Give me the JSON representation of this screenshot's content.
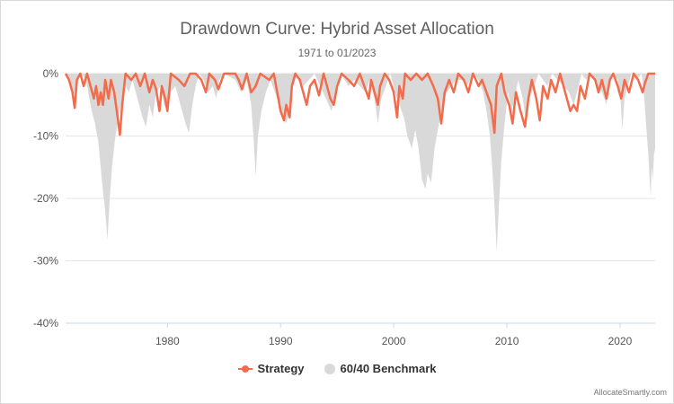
{
  "chart_data": {
    "type": "area",
    "title": "Drawdown Curve: Hybrid Asset Allocation",
    "subtitle": "1971 to 01/2023",
    "xlabel": "",
    "ylabel": "",
    "xlim": [
      1971,
      2023.1
    ],
    "ylim": [
      -40,
      0
    ],
    "x_ticks": [
      "1980",
      "1990",
      "2000",
      "2010",
      "2020"
    ],
    "x_tick_values": [
      1980,
      1990,
      2000,
      2010,
      2020
    ],
    "y_ticks": [
      "0%",
      "-10%",
      "-20%",
      "-30%",
      "-40%"
    ],
    "y_tick_values": [
      0,
      -10,
      -20,
      -30,
      -40
    ],
    "grid": "horizontal",
    "legend_position": "bottom-center",
    "series": [
      {
        "name": "Strategy",
        "style": "line",
        "color": "#f26b4a",
        "points": [
          [
            1971.0,
            0
          ],
          [
            1971.3,
            -1
          ],
          [
            1971.6,
            -3
          ],
          [
            1971.8,
            -5.5
          ],
          [
            1972.0,
            -1
          ],
          [
            1972.3,
            0
          ],
          [
            1972.6,
            -2
          ],
          [
            1972.9,
            0
          ],
          [
            1973.2,
            -2
          ],
          [
            1973.5,
            -4
          ],
          [
            1973.7,
            -2
          ],
          [
            1973.9,
            -5
          ],
          [
            1974.1,
            -3
          ],
          [
            1974.3,
            -5
          ],
          [
            1974.5,
            -1
          ],
          [
            1974.8,
            -4
          ],
          [
            1975.0,
            -1
          ],
          [
            1975.3,
            -3
          ],
          [
            1975.6,
            -7
          ],
          [
            1975.8,
            -9.8
          ],
          [
            1976.0,
            -5
          ],
          [
            1976.3,
            0
          ],
          [
            1976.8,
            -1
          ],
          [
            1977.2,
            0
          ],
          [
            1977.6,
            -2
          ],
          [
            1978.0,
            0
          ],
          [
            1978.4,
            -3
          ],
          [
            1978.7,
            -1
          ],
          [
            1979.0,
            -2.5
          ],
          [
            1979.3,
            -6
          ],
          [
            1979.5,
            -2
          ],
          [
            1979.8,
            -4
          ],
          [
            1980.0,
            -6
          ],
          [
            1980.3,
            0
          ],
          [
            1981.0,
            -1
          ],
          [
            1981.5,
            -2
          ],
          [
            1982.0,
            0
          ],
          [
            1982.5,
            0
          ],
          [
            1983.0,
            -1
          ],
          [
            1983.4,
            -3
          ],
          [
            1983.7,
            0
          ],
          [
            1984.2,
            -1
          ],
          [
            1984.5,
            -2.5
          ],
          [
            1985.0,
            0
          ],
          [
            1986.0,
            0
          ],
          [
            1986.3,
            -1
          ],
          [
            1986.6,
            -2.5
          ],
          [
            1987.0,
            0
          ],
          [
            1987.4,
            -3
          ],
          [
            1987.8,
            -2
          ],
          [
            1988.2,
            0
          ],
          [
            1989.0,
            -1
          ],
          [
            1989.4,
            0
          ],
          [
            1989.7,
            -3
          ],
          [
            1990.0,
            -6
          ],
          [
            1990.3,
            -7.5
          ],
          [
            1990.5,
            -5
          ],
          [
            1990.8,
            -7
          ],
          [
            1991.0,
            -2
          ],
          [
            1991.3,
            0
          ],
          [
            1991.7,
            -1
          ],
          [
            1992.0,
            -3
          ],
          [
            1992.3,
            -5
          ],
          [
            1992.6,
            -2
          ],
          [
            1993.0,
            -1
          ],
          [
            1993.4,
            -3.5
          ],
          [
            1993.8,
            0
          ],
          [
            1994.1,
            -2
          ],
          [
            1994.4,
            -4
          ],
          [
            1994.7,
            -5
          ],
          [
            1995.0,
            -2
          ],
          [
            1995.4,
            0
          ],
          [
            1996.0,
            -1
          ],
          [
            1996.5,
            -2
          ],
          [
            1997.0,
            0
          ],
          [
            1997.4,
            -2
          ],
          [
            1997.8,
            -4
          ],
          [
            1998.0,
            -1
          ],
          [
            1998.3,
            -3
          ],
          [
            1998.6,
            -5
          ],
          [
            1998.8,
            -2
          ],
          [
            1999.2,
            0
          ],
          [
            1999.6,
            -1
          ],
          [
            2000.0,
            -3
          ],
          [
            2000.3,
            -7
          ],
          [
            2000.5,
            -2
          ],
          [
            2000.8,
            -4
          ],
          [
            2001.0,
            0
          ],
          [
            2001.5,
            -1
          ],
          [
            2002.0,
            0
          ],
          [
            2002.5,
            -1
          ],
          [
            2003.0,
            0
          ],
          [
            2003.5,
            -2
          ],
          [
            2003.9,
            -4
          ],
          [
            2004.2,
            -8
          ],
          [
            2004.5,
            -3
          ],
          [
            2004.9,
            -1
          ],
          [
            2005.3,
            -3
          ],
          [
            2005.7,
            0
          ],
          [
            2006.2,
            -1
          ],
          [
            2006.6,
            -3
          ],
          [
            2007.0,
            0
          ],
          [
            2007.5,
            -2
          ],
          [
            2007.8,
            -1
          ],
          [
            2008.2,
            -3
          ],
          [
            2008.6,
            -5
          ],
          [
            2008.9,
            -9.5
          ],
          [
            2009.1,
            -2
          ],
          [
            2009.5,
            0
          ],
          [
            2009.8,
            -3
          ],
          [
            2010.2,
            -5
          ],
          [
            2010.5,
            -8
          ],
          [
            2010.8,
            -3
          ],
          [
            2011.2,
            -6
          ],
          [
            2011.6,
            -8.5
          ],
          [
            2011.9,
            -4
          ],
          [
            2012.2,
            -1
          ],
          [
            2012.6,
            -4
          ],
          [
            2012.9,
            -7.5
          ],
          [
            2013.2,
            -2
          ],
          [
            2013.6,
            -4
          ],
          [
            2013.9,
            -1
          ],
          [
            2014.3,
            -3
          ],
          [
            2014.7,
            0
          ],
          [
            2015.0,
            -2
          ],
          [
            2015.3,
            -4
          ],
          [
            2015.6,
            -6
          ],
          [
            2015.9,
            -5
          ],
          [
            2016.2,
            -6
          ],
          [
            2016.5,
            -2
          ],
          [
            2016.9,
            -4
          ],
          [
            2017.3,
            0
          ],
          [
            2017.8,
            -1
          ],
          [
            2018.1,
            -3
          ],
          [
            2018.4,
            -1
          ],
          [
            2018.8,
            -4
          ],
          [
            2019.1,
            -1
          ],
          [
            2019.4,
            0
          ],
          [
            2019.8,
            -2
          ],
          [
            2020.1,
            -4
          ],
          [
            2020.4,
            -1
          ],
          [
            2020.8,
            -3
          ],
          [
            2021.2,
            0
          ],
          [
            2021.6,
            -1
          ],
          [
            2022.0,
            -3
          ],
          [
            2022.2,
            -1.5
          ],
          [
            2022.5,
            0
          ],
          [
            2023.1,
            0
          ]
        ]
      },
      {
        "name": "60/40 Benchmark",
        "style": "area",
        "color": "#d9d9d9",
        "points": [
          [
            1971.0,
            0
          ],
          [
            1971.4,
            -2
          ],
          [
            1971.7,
            -4
          ],
          [
            1972.0,
            -1
          ],
          [
            1972.4,
            0
          ],
          [
            1972.8,
            -1
          ],
          [
            1973.0,
            -3
          ],
          [
            1973.3,
            -6
          ],
          [
            1973.6,
            -8
          ],
          [
            1973.9,
            -11
          ],
          [
            1974.1,
            -15
          ],
          [
            1974.3,
            -19
          ],
          [
            1974.5,
            -22
          ],
          [
            1974.7,
            -26.7
          ],
          [
            1974.9,
            -20
          ],
          [
            1975.1,
            -15
          ],
          [
            1975.4,
            -10
          ],
          [
            1975.7,
            -7
          ],
          [
            1976.0,
            -4
          ],
          [
            1976.3,
            -2
          ],
          [
            1976.6,
            -3
          ],
          [
            1976.9,
            -1
          ],
          [
            1977.2,
            -3
          ],
          [
            1977.5,
            -5
          ],
          [
            1977.8,
            -7
          ],
          [
            1978.1,
            -8.5
          ],
          [
            1978.4,
            -5
          ],
          [
            1978.7,
            -7
          ],
          [
            1979.0,
            -3
          ],
          [
            1979.4,
            -2
          ],
          [
            1979.7,
            -5
          ],
          [
            1980.0,
            -6
          ],
          [
            1980.3,
            -3
          ],
          [
            1980.7,
            -2
          ],
          [
            1981.0,
            -4
          ],
          [
            1981.3,
            -6
          ],
          [
            1981.6,
            -8
          ],
          [
            1981.9,
            -9.5
          ],
          [
            1982.2,
            -5
          ],
          [
            1982.5,
            -2
          ],
          [
            1982.8,
            0
          ],
          [
            1983.2,
            -1
          ],
          [
            1983.6,
            -3
          ],
          [
            1984.0,
            -2
          ],
          [
            1984.3,
            -4
          ],
          [
            1984.6,
            -1
          ],
          [
            1985.0,
            0
          ],
          [
            1986.0,
            -1
          ],
          [
            1986.5,
            -3
          ],
          [
            1987.0,
            -1
          ],
          [
            1987.4,
            -5
          ],
          [
            1987.6,
            -10
          ],
          [
            1987.8,
            -16.5
          ],
          [
            1988.0,
            -10
          ],
          [
            1988.3,
            -6
          ],
          [
            1988.7,
            -3
          ],
          [
            1989.1,
            -1
          ],
          [
            1989.5,
            -3
          ],
          [
            1989.9,
            -5
          ],
          [
            1990.2,
            -7
          ],
          [
            1990.5,
            -8
          ],
          [
            1990.8,
            -6
          ],
          [
            1991.1,
            -2
          ],
          [
            1991.5,
            0
          ],
          [
            1992.0,
            -2
          ],
          [
            1992.5,
            -1
          ],
          [
            1993.0,
            0
          ],
          [
            1993.5,
            -2
          ],
          [
            1994.0,
            -4
          ],
          [
            1994.5,
            -6
          ],
          [
            1994.9,
            -3
          ],
          [
            1995.3,
            0
          ],
          [
            1996.0,
            -2
          ],
          [
            1996.5,
            -1
          ],
          [
            1997.0,
            -2
          ],
          [
            1997.5,
            -3
          ],
          [
            1997.9,
            -1
          ],
          [
            1998.3,
            -4
          ],
          [
            1998.6,
            -8
          ],
          [
            1998.9,
            -4
          ],
          [
            1999.3,
            -2
          ],
          [
            1999.7,
            0
          ],
          [
            2000.1,
            -3
          ],
          [
            2000.5,
            -5
          ],
          [
            2000.9,
            -7
          ],
          [
            2001.2,
            -10
          ],
          [
            2001.6,
            -12
          ],
          [
            2001.9,
            -9
          ],
          [
            2002.2,
            -12
          ],
          [
            2002.5,
            -17
          ],
          [
            2002.8,
            -18.5
          ],
          [
            2003.0,
            -16
          ],
          [
            2003.3,
            -17.5
          ],
          [
            2003.6,
            -12
          ],
          [
            2003.9,
            -9
          ],
          [
            2004.3,
            -5
          ],
          [
            2004.7,
            -3
          ],
          [
            2005.1,
            -2
          ],
          [
            2005.5,
            -1
          ],
          [
            2006.0,
            -1
          ],
          [
            2006.5,
            -2
          ],
          [
            2007.0,
            0
          ],
          [
            2007.5,
            -1
          ],
          [
            2007.9,
            -3
          ],
          [
            2008.2,
            -6
          ],
          [
            2008.5,
            -10
          ],
          [
            2008.7,
            -15
          ],
          [
            2008.9,
            -21
          ],
          [
            2009.1,
            -28.5
          ],
          [
            2009.3,
            -21
          ],
          [
            2009.5,
            -14
          ],
          [
            2009.8,
            -8
          ],
          [
            2010.1,
            -3
          ],
          [
            2010.4,
            -6
          ],
          [
            2010.7,
            -4
          ],
          [
            2011.0,
            -1
          ],
          [
            2011.4,
            -4
          ],
          [
            2011.7,
            -8
          ],
          [
            2012.0,
            -4
          ],
          [
            2012.4,
            -2
          ],
          [
            2012.8,
            0
          ],
          [
            2013.2,
            -1
          ],
          [
            2013.6,
            -2
          ],
          [
            2014.0,
            0
          ],
          [
            2014.5,
            -1
          ],
          [
            2015.0,
            -2
          ],
          [
            2015.5,
            -3
          ],
          [
            2015.9,
            -5
          ],
          [
            2016.2,
            -3
          ],
          [
            2016.6,
            0
          ],
          [
            2017.0,
            -1
          ],
          [
            2017.5,
            0
          ],
          [
            2018.0,
            -2
          ],
          [
            2018.4,
            -3
          ],
          [
            2018.8,
            -5
          ],
          [
            2019.0,
            -2
          ],
          [
            2019.4,
            0
          ],
          [
            2019.8,
            -1
          ],
          [
            2020.0,
            -3
          ],
          [
            2020.2,
            -9
          ],
          [
            2020.4,
            -4
          ],
          [
            2020.7,
            -2
          ],
          [
            2021.0,
            0
          ],
          [
            2021.5,
            -1
          ],
          [
            2021.9,
            0
          ],
          [
            2022.1,
            -3
          ],
          [
            2022.3,
            -8
          ],
          [
            2022.5,
            -13
          ],
          [
            2022.7,
            -19.8
          ],
          [
            2022.8,
            -15
          ],
          [
            2022.9,
            -17
          ],
          [
            2023.0,
            -13
          ],
          [
            2023.1,
            -12
          ]
        ]
      }
    ]
  },
  "credit": "AllocateSmartly.com"
}
